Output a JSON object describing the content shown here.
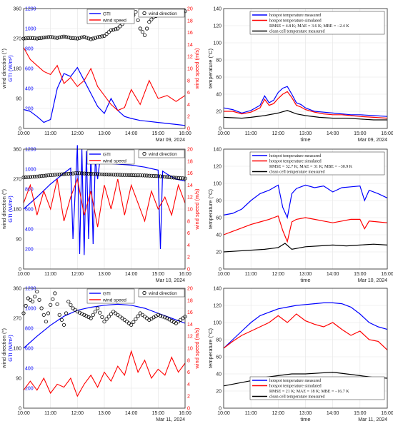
{
  "colors": {
    "blue": "#0000ff",
    "red": "#ff0000",
    "black": "#000000",
    "grid": "#e3e3e3",
    "frame": "#262626"
  },
  "chart_data": [
    {
      "type": "line",
      "panel": "left-1",
      "date_label": "Mar 09, 2024",
      "x_ticks": [
        "10:00",
        "11:00",
        "12:00",
        "13:00",
        "14:00",
        "15:00",
        "16:00"
      ],
      "xlim": [
        "10:00",
        "16:00"
      ],
      "ylabel_wd": "wind direction (°)",
      "ylabel_gti": "GTI (W/m²)",
      "ylabel_ws": "wind speed (m/s)",
      "y_ticks_outer": [
        "0",
        "90",
        "180",
        "270",
        "360"
      ],
      "y_ticks_gti": [
        "0",
        "200",
        "400",
        "600",
        "800",
        "1000",
        "1200"
      ],
      "y_ticks_ws": [
        "0",
        "2",
        "4",
        "6",
        "8",
        "10",
        "12",
        "14",
        "16",
        "18",
        "20"
      ],
      "gti_lim": [
        0,
        1200
      ],
      "ws_lim": [
        0,
        20
      ],
      "legend_gti": "GTI",
      "legend_ws": "wind speed",
      "legend_wd": "wind direction",
      "gti": {
        "x": [
          "10:00",
          "10:15",
          "10:30",
          "10:45",
          "11:00",
          "11:15",
          "11:30",
          "11:45",
          "12:00",
          "12:15",
          "12:30",
          "12:45",
          "13:00",
          "13:15",
          "13:30",
          "13:45",
          "14:00",
          "14:20",
          "14:40",
          "15:00",
          "15:20",
          "15:40",
          "16:00"
        ],
        "values": [
          190,
          170,
          120,
          60,
          90,
          400,
          550,
          520,
          610,
          480,
          350,
          220,
          150,
          300,
          180,
          120,
          100,
          80,
          70,
          60,
          50,
          40,
          30
        ]
      },
      "wind_speed": {
        "x": [
          "10:00",
          "10:15",
          "10:30",
          "10:45",
          "11:00",
          "11:15",
          "11:30",
          "11:45",
          "12:00",
          "12:15",
          "12:30",
          "12:45",
          "13:00",
          "13:15",
          "13:30",
          "13:45",
          "14:00",
          "14:20",
          "14:40",
          "15:00",
          "15:20",
          "15:40",
          "16:00"
        ],
        "values": [
          13.5,
          11.5,
          10.5,
          9.5,
          9.0,
          10.5,
          7.5,
          8.5,
          7.0,
          8.0,
          10.0,
          7.0,
          5.5,
          4.0,
          3.0,
          3.5,
          6.5,
          4.0,
          8.0,
          5.0,
          5.5,
          4.5,
          5.5
        ]
      },
      "wind_direction": {
        "x": [
          "10:00",
          "10:15",
          "10:30",
          "10:45",
          "11:00",
          "11:15",
          "11:30",
          "11:45",
          "12:00",
          "12:15",
          "12:30",
          "12:45",
          "13:00",
          "13:15",
          "13:30",
          "13:45",
          "14:00",
          "14:10",
          "14:20",
          "14:30",
          "14:40",
          "14:50",
          "15:00",
          "15:20",
          "15:40",
          "16:00"
        ],
        "values": [
          270,
          272,
          270,
          273,
          275,
          272,
          276,
          272,
          270,
          275,
          268,
          274,
          278,
          295,
          300,
          320,
          330,
          350,
          300,
          280,
          320,
          335,
          340,
          345,
          350,
          352
        ]
      }
    },
    {
      "type": "line",
      "panel": "right-1",
      "date_label": "Mar 09, 2024",
      "xlabel": "time",
      "ylabel": "temperature (°C)",
      "x_ticks": [
        "10:00",
        "11:00",
        "12:00",
        "13:00",
        "14:00",
        "15:00",
        "16:00"
      ],
      "y_ticks": [
        "0",
        "20",
        "40",
        "60",
        "80",
        "100",
        "120",
        "140"
      ],
      "ylim": [
        0,
        140
      ],
      "legend": [
        "hotspot temperature measured",
        "hotspot temperature simulated",
        "RMSE = 4.8 K; MAE = 3.6 K; MBE = −2.4 K",
        "clean cell temperature measured"
      ],
      "series": [
        {
          "x": [
            "10:00",
            "10:20",
            "10:40",
            "11:00",
            "11:20",
            "11:30",
            "11:40",
            "11:50",
            "12:00",
            "12:10",
            "12:20",
            "12:30",
            "12:40",
            "12:50",
            "13:00",
            "13:20",
            "13:40",
            "14:00",
            "14:20",
            "14:40",
            "15:00",
            "15:30",
            "16:00"
          ],
          "values": [
            24,
            22,
            18,
            21,
            27,
            38,
            30,
            33,
            42,
            47,
            49,
            40,
            30,
            28,
            24,
            20,
            19,
            18,
            17,
            16,
            16,
            15,
            14
          ]
        },
        {
          "x": [
            "10:00",
            "10:20",
            "10:40",
            "11:00",
            "11:20",
            "11:30",
            "11:40",
            "11:50",
            "12:00",
            "12:10",
            "12:20",
            "12:30",
            "12:40",
            "12:50",
            "13:00",
            "13:20",
            "13:40",
            "14:00",
            "14:20",
            "14:40",
            "15:00",
            "15:30",
            "16:00"
          ],
          "values": [
            20,
            20,
            17,
            19,
            24,
            34,
            27,
            29,
            35,
            40,
            43,
            36,
            27,
            25,
            22,
            19,
            17,
            16,
            16,
            15,
            14,
            13,
            12
          ]
        },
        {
          "x": [
            "10:00",
            "10:40",
            "11:00",
            "11:30",
            "12:00",
            "12:20",
            "12:40",
            "13:00",
            "13:30",
            "14:00",
            "14:30",
            "15:00",
            "15:30",
            "16:00"
          ],
          "values": [
            13,
            12,
            13,
            15,
            18,
            21,
            17,
            15,
            13,
            12,
            12,
            11,
            10,
            10
          ]
        }
      ]
    },
    {
      "type": "line",
      "panel": "left-2",
      "date_label": "Mar 10, 2024",
      "x_ticks": [
        "10:00",
        "11:00",
        "12:00",
        "13:00",
        "14:00",
        "15:00",
        "16:00"
      ],
      "ylabel_wd": "wind direction (°)",
      "ylabel_gti": "GTI (W/m²)",
      "ylabel_ws": "wind speed (m/s)",
      "y_ticks_outer": [
        "0",
        "90",
        "180",
        "270",
        "360"
      ],
      "y_ticks_gti": [
        "0",
        "200",
        "400",
        "600",
        "800",
        "1000",
        "1200"
      ],
      "y_ticks_ws": [
        "0",
        "2",
        "4",
        "6",
        "8",
        "10",
        "12",
        "14",
        "16",
        "18",
        "20"
      ],
      "legend_gti": "GTI",
      "legend_ws": "wind speed",
      "legend_wd": "wind direction",
      "gti": {
        "x": [
          "10:00",
          "10:30",
          "11:00",
          "11:30",
          "11:45",
          "11:50",
          "12:00",
          "12:05",
          "12:10",
          "12:15",
          "12:20",
          "12:25",
          "12:30",
          "12:35",
          "12:40",
          "12:45",
          "12:50",
          "13:00",
          "13:30",
          "14:00",
          "14:30",
          "15:00",
          "15:05",
          "15:10",
          "15:20",
          "15:40",
          "16:00"
        ],
        "values": [
          600,
          720,
          850,
          960,
          1010,
          300,
          1240,
          150,
          1200,
          140,
          1180,
          300,
          1150,
          250,
          1100,
          900,
          1080,
          1060,
          1050,
          1040,
          1020,
          990,
          200,
          980,
          950,
          900,
          880
        ]
      },
      "wind_speed": {
        "x": [
          "10:00",
          "10:15",
          "10:30",
          "10:45",
          "11:00",
          "11:15",
          "11:30",
          "11:45",
          "12:00",
          "12:15",
          "12:30",
          "12:45",
          "13:00",
          "13:15",
          "13:30",
          "13:45",
          "14:00",
          "14:15",
          "14:30",
          "14:45",
          "15:00",
          "15:15",
          "15:30",
          "15:45",
          "16:00"
        ],
        "values": [
          11,
          14,
          9,
          13,
          10,
          15,
          8,
          12,
          15,
          9,
          13,
          7,
          14,
          10,
          15,
          9,
          14,
          11,
          8,
          13,
          10,
          12,
          9,
          14,
          11
        ]
      },
      "wind_direction": {
        "x": [
          "10:00",
          "10:30",
          "11:00",
          "11:30",
          "12:00",
          "12:30",
          "13:00",
          "13:30",
          "14:00",
          "14:30",
          "15:00",
          "15:30",
          "16:00"
        ],
        "values": [
          275,
          278,
          282,
          285,
          288,
          286,
          284,
          283,
          282,
          281,
          279,
          275,
          272
        ]
      }
    },
    {
      "type": "line",
      "panel": "right-2",
      "date_label": "Mar 10, 2024",
      "xlabel": "time",
      "ylabel": "temperature (°C)",
      "x_ticks": [
        "10:00",
        "11:00",
        "12:00",
        "13:00",
        "14:00",
        "15:00",
        "16:00"
      ],
      "y_ticks": [
        "0",
        "20",
        "40",
        "60",
        "80",
        "100",
        "120",
        "140"
      ],
      "ylim": [
        0,
        140
      ],
      "legend": [
        "hotspot temperature measured",
        "hotspot temperature simulated",
        "RMSE = 32.7 K; MAE = 31 K; MBE = −30.9 K",
        "clean cell temperature measured"
      ],
      "series": [
        {
          "x": [
            "10:00",
            "10:20",
            "10:40",
            "11:00",
            "11:20",
            "11:40",
            "12:00",
            "12:10",
            "12:20",
            "12:30",
            "12:40",
            "13:00",
            "13:20",
            "13:40",
            "14:00",
            "14:20",
            "14:40",
            "15:00",
            "15:10",
            "15:20",
            "15:40",
            "16:00"
          ],
          "values": [
            63,
            65,
            70,
            80,
            88,
            92,
            98,
            72,
            60,
            88,
            94,
            98,
            95,
            97,
            90,
            95,
            96,
            97,
            80,
            92,
            88,
            83
          ]
        },
        {
          "x": [
            "10:00",
            "10:20",
            "10:40",
            "11:00",
            "11:20",
            "11:40",
            "12:00",
            "12:10",
            "12:20",
            "12:30",
            "12:40",
            "13:00",
            "13:20",
            "13:40",
            "14:00",
            "14:20",
            "14:40",
            "15:00",
            "15:10",
            "15:20",
            "15:40",
            "16:00"
          ],
          "values": [
            40,
            44,
            48,
            52,
            55,
            58,
            62,
            45,
            32,
            55,
            58,
            60,
            58,
            56,
            54,
            56,
            58,
            58,
            47,
            56,
            55,
            54
          ]
        },
        {
          "x": [
            "10:00",
            "10:30",
            "11:00",
            "11:30",
            "12:00",
            "12:15",
            "12:30",
            "13:00",
            "13:30",
            "14:00",
            "14:30",
            "15:00",
            "15:30",
            "16:00"
          ],
          "values": [
            20,
            21,
            22,
            23,
            25,
            30,
            23,
            26,
            27,
            28,
            27,
            28,
            29,
            28
          ]
        }
      ]
    },
    {
      "type": "line",
      "panel": "left-3",
      "date_label": "Mar 11, 2024",
      "x_ticks": [
        "10:00",
        "11:00",
        "12:00",
        "13:00",
        "14:00",
        "15:00",
        "16:00"
      ],
      "ylabel_wd": "wind direction (°)",
      "ylabel_gti": "GTI (W/m²)",
      "ylabel_ws": "wind speed (m/s)",
      "y_ticks_outer": [
        "0",
        "90",
        "180",
        "270",
        "360"
      ],
      "y_ticks_gti": [
        "0",
        "200",
        "400",
        "600",
        "800",
        "1000",
        "1200"
      ],
      "y_ticks_ws": [
        "0",
        "2",
        "4",
        "6",
        "8",
        "10",
        "12",
        "14",
        "16",
        "18",
        "20"
      ],
      "legend_gti": "GTI",
      "legend_ws": "wind speed",
      "legend_wd": "wind direction",
      "gti": {
        "x": [
          "10:00",
          "10:30",
          "11:00",
          "11:30",
          "12:00",
          "12:30",
          "13:00",
          "13:30",
          "14:00",
          "14:30",
          "15:00",
          "15:30",
          "16:00"
        ],
        "values": [
          600,
          720,
          830,
          920,
          980,
          1010,
          1030,
          1040,
          1030,
          1000,
          950,
          900,
          850
        ]
      },
      "wind_speed": {
        "x": [
          "10:00",
          "10:15",
          "10:30",
          "10:45",
          "11:00",
          "11:15",
          "11:30",
          "11:45",
          "12:00",
          "12:15",
          "12:30",
          "12:45",
          "13:00",
          "13:15",
          "13:30",
          "13:45",
          "14:00",
          "14:15",
          "14:30",
          "14:45",
          "15:00",
          "15:15",
          "15:30",
          "15:45",
          "16:00"
        ],
        "values": [
          3.0,
          4.5,
          3.0,
          5.0,
          2.5,
          4.0,
          3.5,
          5.0,
          2.0,
          4.0,
          5.5,
          3.5,
          6.0,
          4.5,
          7.0,
          5.5,
          9.5,
          6.0,
          8.0,
          5.0,
          6.5,
          5.5,
          8.5,
          6.0,
          7.5
        ]
      },
      "wind_direction": {
        "x": [
          "10:00",
          "10:10",
          "10:20",
          "10:30",
          "10:40",
          "10:50",
          "11:00",
          "11:10",
          "11:20",
          "11:30",
          "11:40",
          "11:50",
          "12:00",
          "12:15",
          "12:30",
          "12:45",
          "13:00",
          "13:20",
          "13:40",
          "14:00",
          "14:20",
          "14:40",
          "15:00",
          "15:20",
          "15:40",
          "16:00"
        ],
        "values": [
          285,
          330,
          320,
          350,
          300,
          260,
          310,
          345,
          280,
          250,
          320,
          300,
          290,
          280,
          270,
          300,
          260,
          290,
          270,
          250,
          285,
          265,
          280,
          270,
          255,
          275
        ]
      }
    },
    {
      "type": "line",
      "panel": "right-3",
      "date_label": "Mar 11, 2024",
      "xlabel": "time",
      "ylabel": "temperature (°C)",
      "x_ticks": [
        "10:00",
        "11:00",
        "12:00",
        "13:00",
        "14:00",
        "15:00",
        "16:00"
      ],
      "y_ticks": [
        "0",
        "20",
        "40",
        "60",
        "80",
        "100",
        "120",
        "140"
      ],
      "ylim": [
        0,
        140
      ],
      "legend": [
        "hotspot temperature measured",
        "hotspot temperature simulated",
        "RMSE = 21 K; MAE = 18 K; MBE = −16.7 K",
        "clean cell temperature measured"
      ],
      "series": [
        {
          "x": [
            "10:00",
            "10:20",
            "10:40",
            "11:00",
            "11:20",
            "11:40",
            "12:00",
            "12:20",
            "12:40",
            "13:00",
            "13:20",
            "13:40",
            "14:00",
            "14:20",
            "14:40",
            "15:00",
            "15:20",
            "15:40",
            "16:00"
          ],
          "values": [
            70,
            80,
            90,
            100,
            108,
            112,
            116,
            118,
            120,
            121,
            122,
            123,
            123,
            122,
            118,
            110,
            100,
            95,
            92
          ]
        },
        {
          "x": [
            "10:00",
            "10:20",
            "10:40",
            "11:00",
            "11:20",
            "11:40",
            "12:00",
            "12:20",
            "12:40",
            "13:00",
            "13:20",
            "13:40",
            "14:00",
            "14:20",
            "14:40",
            "15:00",
            "15:20",
            "15:40",
            "16:00"
          ],
          "values": [
            70,
            78,
            85,
            90,
            95,
            100,
            108,
            100,
            110,
            102,
            98,
            95,
            100,
            92,
            85,
            90,
            80,
            78,
            68
          ]
        },
        {
          "x": [
            "10:00",
            "10:30",
            "11:00",
            "11:30",
            "12:00",
            "12:30",
            "13:00",
            "13:30",
            "14:00",
            "14:30",
            "15:00",
            "15:30",
            "16:00"
          ],
          "values": [
            26,
            29,
            32,
            36,
            38,
            40,
            40,
            41,
            42,
            40,
            38,
            36,
            35
          ]
        }
      ]
    }
  ]
}
